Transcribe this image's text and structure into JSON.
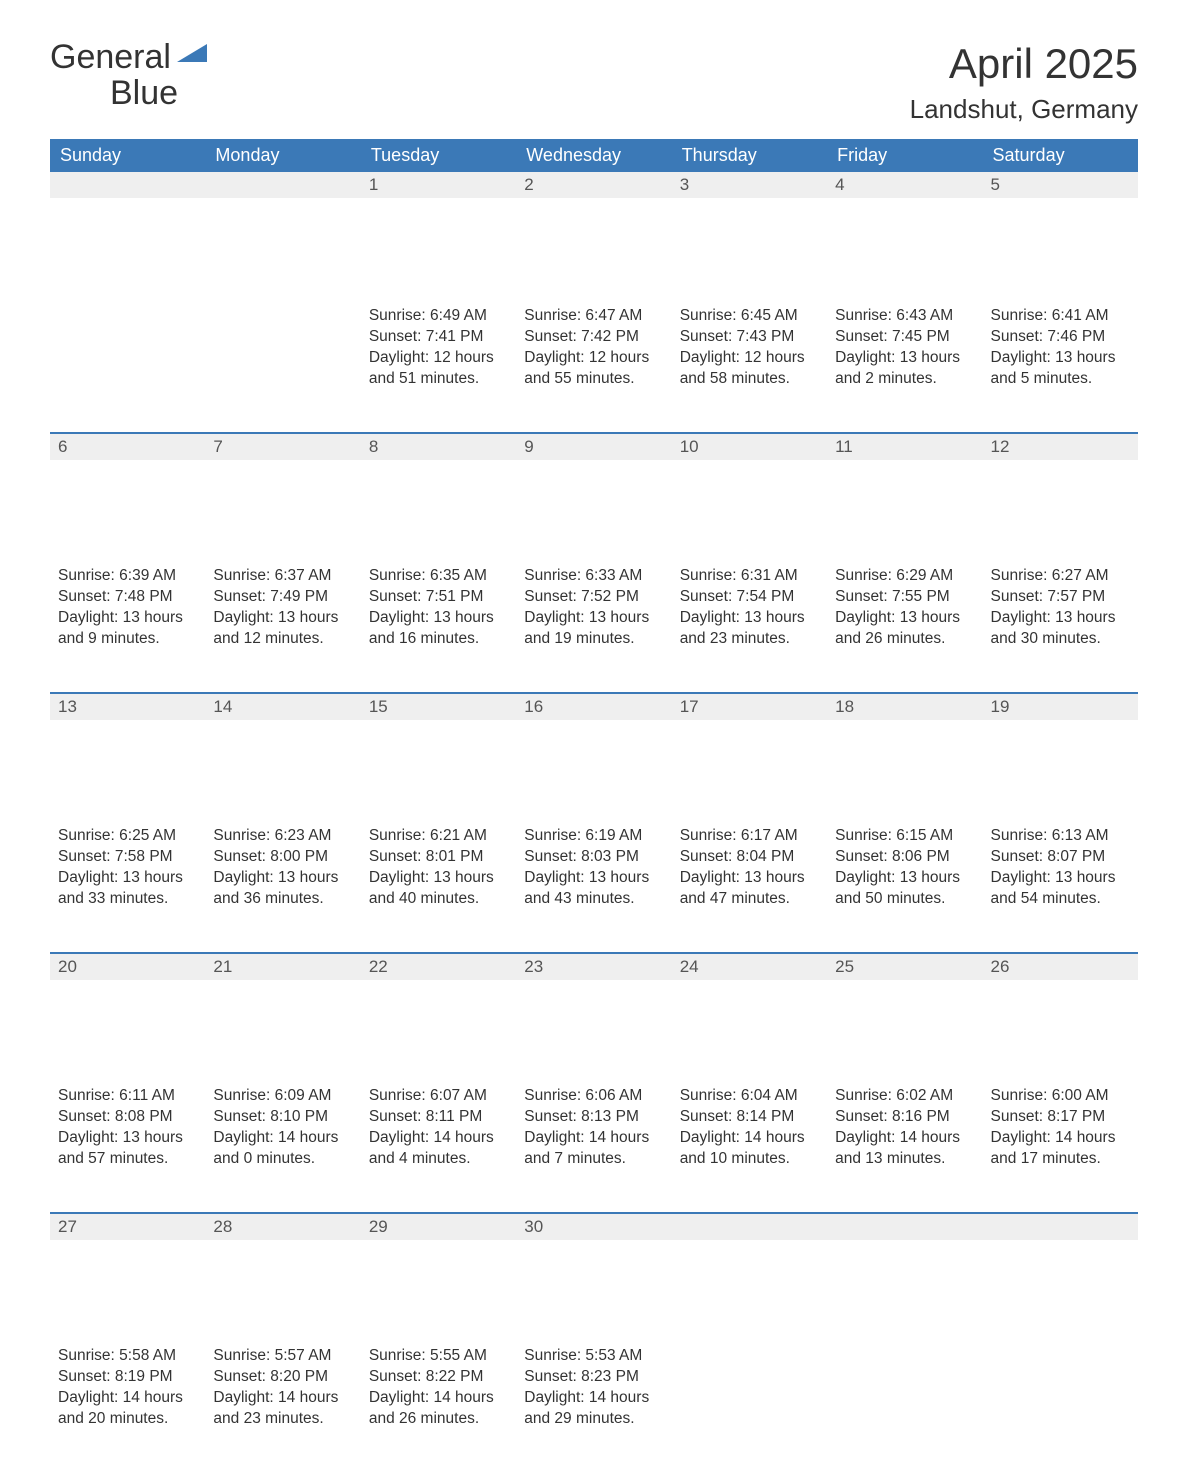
{
  "colors": {
    "brand_blue": "#3b79b7",
    "header_bg": "#3b79b7",
    "header_text": "#ffffff",
    "daynum_bg": "#efefef",
    "body_text": "#333333",
    "row_divider": "#3b79b7",
    "page_bg": "#ffffff"
  },
  "logo": {
    "line1": "General",
    "line2": "Blue"
  },
  "title": "April 2025",
  "location": "Landshut, Germany",
  "weekdays": [
    "Sunday",
    "Monday",
    "Tuesday",
    "Wednesday",
    "Thursday",
    "Friday",
    "Saturday"
  ],
  "weeks": [
    [
      {
        "n": "",
        "sunrise": "",
        "sunset": "",
        "day1": "",
        "day2": ""
      },
      {
        "n": "",
        "sunrise": "",
        "sunset": "",
        "day1": "",
        "day2": ""
      },
      {
        "n": "1",
        "sunrise": "Sunrise: 6:49 AM",
        "sunset": "Sunset: 7:41 PM",
        "day1": "Daylight: 12 hours",
        "day2": "and 51 minutes."
      },
      {
        "n": "2",
        "sunrise": "Sunrise: 6:47 AM",
        "sunset": "Sunset: 7:42 PM",
        "day1": "Daylight: 12 hours",
        "day2": "and 55 minutes."
      },
      {
        "n": "3",
        "sunrise": "Sunrise: 6:45 AM",
        "sunset": "Sunset: 7:43 PM",
        "day1": "Daylight: 12 hours",
        "day2": "and 58 minutes."
      },
      {
        "n": "4",
        "sunrise": "Sunrise: 6:43 AM",
        "sunset": "Sunset: 7:45 PM",
        "day1": "Daylight: 13 hours",
        "day2": "and 2 minutes."
      },
      {
        "n": "5",
        "sunrise": "Sunrise: 6:41 AM",
        "sunset": "Sunset: 7:46 PM",
        "day1": "Daylight: 13 hours",
        "day2": "and 5 minutes."
      }
    ],
    [
      {
        "n": "6",
        "sunrise": "Sunrise: 6:39 AM",
        "sunset": "Sunset: 7:48 PM",
        "day1": "Daylight: 13 hours",
        "day2": "and 9 minutes."
      },
      {
        "n": "7",
        "sunrise": "Sunrise: 6:37 AM",
        "sunset": "Sunset: 7:49 PM",
        "day1": "Daylight: 13 hours",
        "day2": "and 12 minutes."
      },
      {
        "n": "8",
        "sunrise": "Sunrise: 6:35 AM",
        "sunset": "Sunset: 7:51 PM",
        "day1": "Daylight: 13 hours",
        "day2": "and 16 minutes."
      },
      {
        "n": "9",
        "sunrise": "Sunrise: 6:33 AM",
        "sunset": "Sunset: 7:52 PM",
        "day1": "Daylight: 13 hours",
        "day2": "and 19 minutes."
      },
      {
        "n": "10",
        "sunrise": "Sunrise: 6:31 AM",
        "sunset": "Sunset: 7:54 PM",
        "day1": "Daylight: 13 hours",
        "day2": "and 23 minutes."
      },
      {
        "n": "11",
        "sunrise": "Sunrise: 6:29 AM",
        "sunset": "Sunset: 7:55 PM",
        "day1": "Daylight: 13 hours",
        "day2": "and 26 minutes."
      },
      {
        "n": "12",
        "sunrise": "Sunrise: 6:27 AM",
        "sunset": "Sunset: 7:57 PM",
        "day1": "Daylight: 13 hours",
        "day2": "and 30 minutes."
      }
    ],
    [
      {
        "n": "13",
        "sunrise": "Sunrise: 6:25 AM",
        "sunset": "Sunset: 7:58 PM",
        "day1": "Daylight: 13 hours",
        "day2": "and 33 minutes."
      },
      {
        "n": "14",
        "sunrise": "Sunrise: 6:23 AM",
        "sunset": "Sunset: 8:00 PM",
        "day1": "Daylight: 13 hours",
        "day2": "and 36 minutes."
      },
      {
        "n": "15",
        "sunrise": "Sunrise: 6:21 AM",
        "sunset": "Sunset: 8:01 PM",
        "day1": "Daylight: 13 hours",
        "day2": "and 40 minutes."
      },
      {
        "n": "16",
        "sunrise": "Sunrise: 6:19 AM",
        "sunset": "Sunset: 8:03 PM",
        "day1": "Daylight: 13 hours",
        "day2": "and 43 minutes."
      },
      {
        "n": "17",
        "sunrise": "Sunrise: 6:17 AM",
        "sunset": "Sunset: 8:04 PM",
        "day1": "Daylight: 13 hours",
        "day2": "and 47 minutes."
      },
      {
        "n": "18",
        "sunrise": "Sunrise: 6:15 AM",
        "sunset": "Sunset: 8:06 PM",
        "day1": "Daylight: 13 hours",
        "day2": "and 50 minutes."
      },
      {
        "n": "19",
        "sunrise": "Sunrise: 6:13 AM",
        "sunset": "Sunset: 8:07 PM",
        "day1": "Daylight: 13 hours",
        "day2": "and 54 minutes."
      }
    ],
    [
      {
        "n": "20",
        "sunrise": "Sunrise: 6:11 AM",
        "sunset": "Sunset: 8:08 PM",
        "day1": "Daylight: 13 hours",
        "day2": "and 57 minutes."
      },
      {
        "n": "21",
        "sunrise": "Sunrise: 6:09 AM",
        "sunset": "Sunset: 8:10 PM",
        "day1": "Daylight: 14 hours",
        "day2": "and 0 minutes."
      },
      {
        "n": "22",
        "sunrise": "Sunrise: 6:07 AM",
        "sunset": "Sunset: 8:11 PM",
        "day1": "Daylight: 14 hours",
        "day2": "and 4 minutes."
      },
      {
        "n": "23",
        "sunrise": "Sunrise: 6:06 AM",
        "sunset": "Sunset: 8:13 PM",
        "day1": "Daylight: 14 hours",
        "day2": "and 7 minutes."
      },
      {
        "n": "24",
        "sunrise": "Sunrise: 6:04 AM",
        "sunset": "Sunset: 8:14 PM",
        "day1": "Daylight: 14 hours",
        "day2": "and 10 minutes."
      },
      {
        "n": "25",
        "sunrise": "Sunrise: 6:02 AM",
        "sunset": "Sunset: 8:16 PM",
        "day1": "Daylight: 14 hours",
        "day2": "and 13 minutes."
      },
      {
        "n": "26",
        "sunrise": "Sunrise: 6:00 AM",
        "sunset": "Sunset: 8:17 PM",
        "day1": "Daylight: 14 hours",
        "day2": "and 17 minutes."
      }
    ],
    [
      {
        "n": "27",
        "sunrise": "Sunrise: 5:58 AM",
        "sunset": "Sunset: 8:19 PM",
        "day1": "Daylight: 14 hours",
        "day2": "and 20 minutes."
      },
      {
        "n": "28",
        "sunrise": "Sunrise: 5:57 AM",
        "sunset": "Sunset: 8:20 PM",
        "day1": "Daylight: 14 hours",
        "day2": "and 23 minutes."
      },
      {
        "n": "29",
        "sunrise": "Sunrise: 5:55 AM",
        "sunset": "Sunset: 8:22 PM",
        "day1": "Daylight: 14 hours",
        "day2": "and 26 minutes."
      },
      {
        "n": "30",
        "sunrise": "Sunrise: 5:53 AM",
        "sunset": "Sunset: 8:23 PM",
        "day1": "Daylight: 14 hours",
        "day2": "and 29 minutes."
      },
      {
        "n": "",
        "sunrise": "",
        "sunset": "",
        "day1": "",
        "day2": ""
      },
      {
        "n": "",
        "sunrise": "",
        "sunset": "",
        "day1": "",
        "day2": ""
      },
      {
        "n": "",
        "sunrise": "",
        "sunset": "",
        "day1": "",
        "day2": ""
      }
    ]
  ]
}
